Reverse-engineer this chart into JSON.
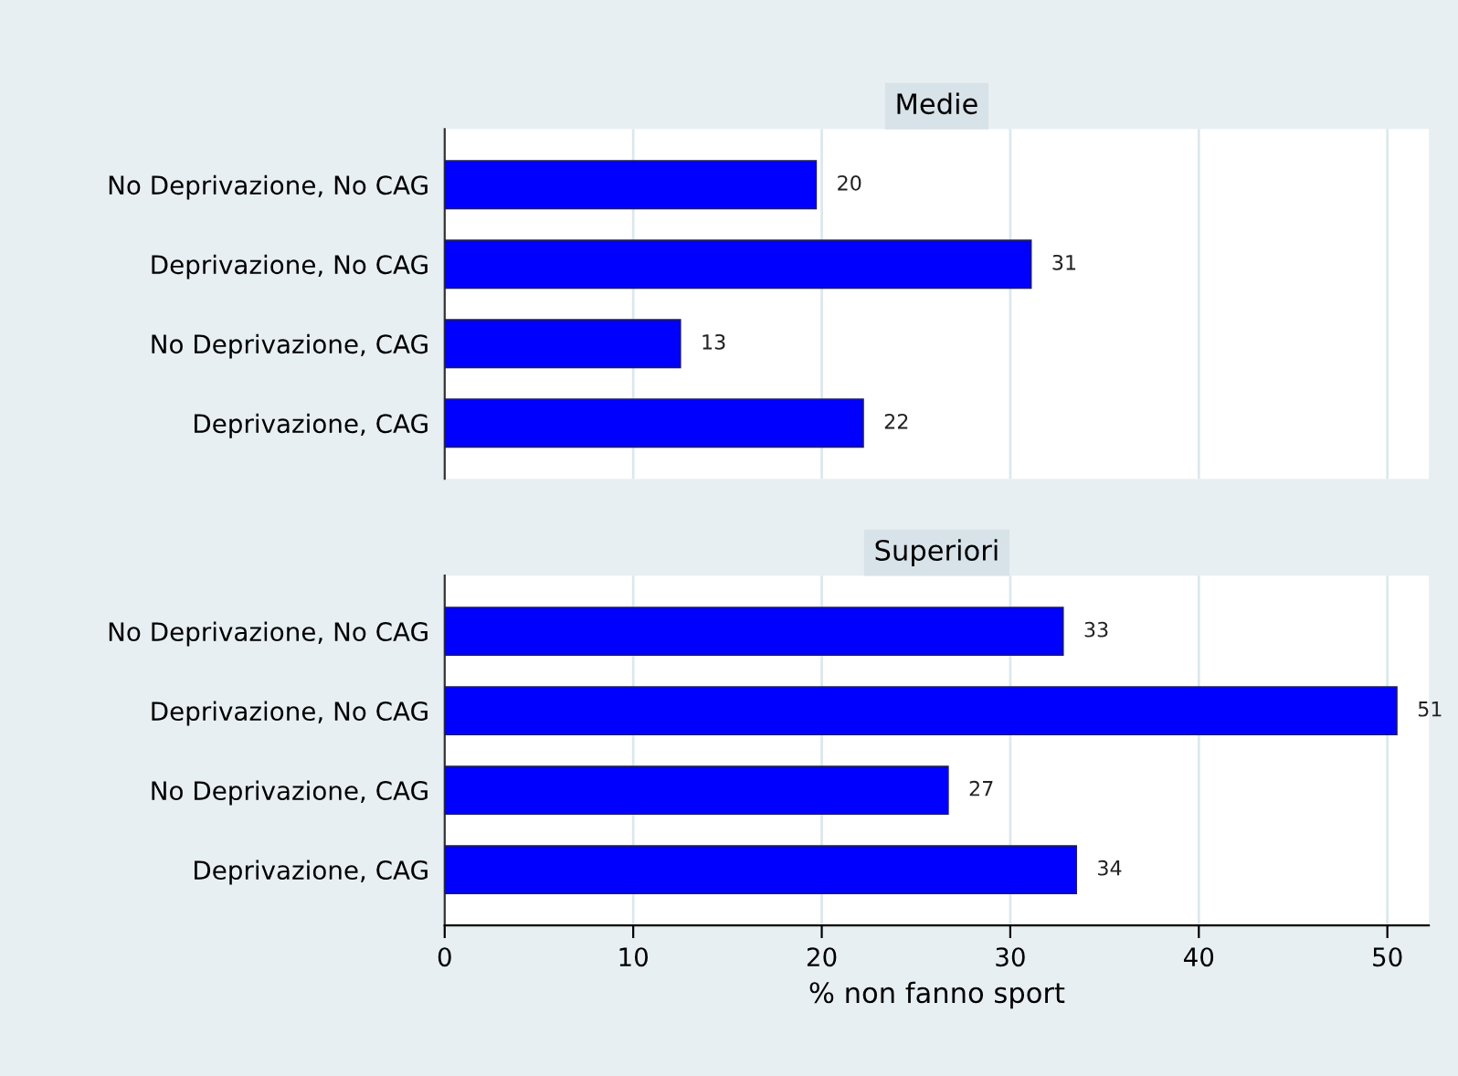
{
  "chart_data": [
    {
      "type": "bar",
      "orientation": "horizontal",
      "title": "Medie",
      "categories": [
        "No Deprivazione, No CAG",
        "Deprivazione, No CAG",
        "No Deprivazione, CAG",
        "Deprivazione, CAG"
      ],
      "values": [
        19.7,
        31.1,
        12.5,
        22.2
      ],
      "value_labels": [
        "20",
        "31",
        "13",
        "22"
      ],
      "color": "#0000ff",
      "xlim": [
        0,
        52.2
      ],
      "xticks": [
        0,
        10,
        20,
        30,
        40,
        50
      ],
      "grid": "x",
      "tick_labels": "y"
    },
    {
      "type": "bar",
      "orientation": "horizontal",
      "title": "Superiori",
      "xlabel": "% non fanno sport",
      "categories": [
        "No Deprivazione, No CAG",
        "Deprivazione, No CAG",
        "No Deprivazione, CAG",
        "Deprivazione, CAG"
      ],
      "values": [
        32.8,
        50.5,
        26.7,
        33.5
      ],
      "value_labels": [
        "33",
        "51",
        "27",
        "34"
      ],
      "color": "#0000ff",
      "xlim": [
        0,
        52.2
      ],
      "xticks": [
        0,
        10,
        20,
        30,
        40,
        50
      ],
      "grid": "x"
    }
  ]
}
